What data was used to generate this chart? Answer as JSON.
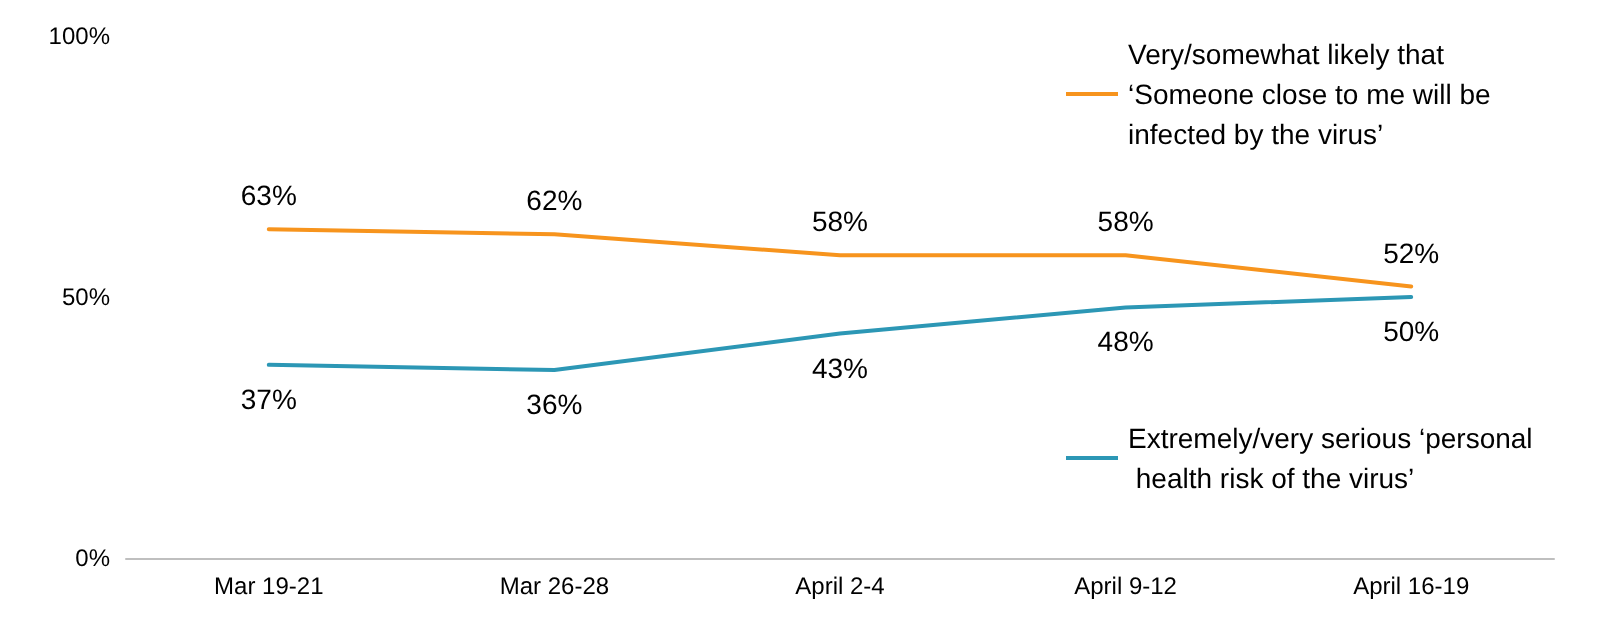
{
  "chart_data": {
    "type": "line",
    "categories": [
      "Mar 19-21",
      "Mar 26-28",
      "April 2-4",
      "April 9-12",
      "April 16-19"
    ],
    "series": [
      {
        "name": "Very/somewhat likely that ‘Someone close to me will be infected by the virus’",
        "color": "#f7941d",
        "values": [
          63,
          62,
          58,
          58,
          52
        ],
        "value_labels": [
          "63%",
          "62%",
          "58%",
          "58%",
          "52%"
        ]
      },
      {
        "name": "Extremely/very serious ‘personal health risk of the virus’",
        "color": "#2c97b5",
        "values": [
          37,
          36,
          43,
          48,
          50
        ],
        "value_labels": [
          "37%",
          "36%",
          "43%",
          "48%",
          "50%"
        ]
      }
    ],
    "ylim": [
      0,
      100
    ],
    "yticks": [
      {
        "value": 0,
        "label": "0%"
      },
      {
        "value": 50,
        "label": "50%"
      },
      {
        "value": 100,
        "label": "100%"
      }
    ],
    "grid": false,
    "legend": "right",
    "marker": "none",
    "line_style": "solid"
  }
}
